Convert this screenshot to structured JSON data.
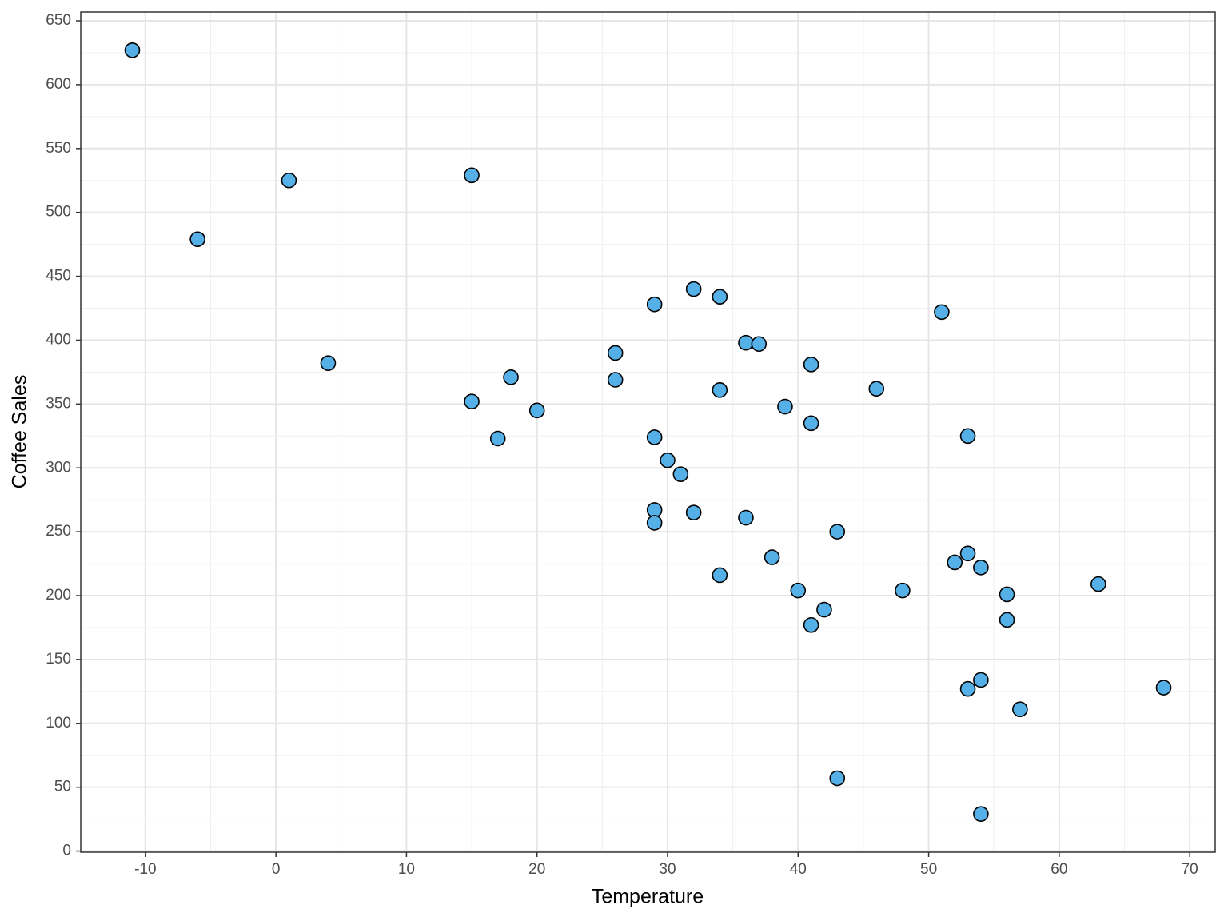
{
  "chart_data": {
    "type": "scatter",
    "x_label": "Temperature",
    "y_label": "Coffee Sales",
    "x": [
      -11,
      -6,
      1,
      15,
      4,
      15,
      18,
      17,
      20,
      26,
      26,
      29,
      32,
      34,
      36,
      37,
      41,
      51,
      34,
      46,
      39,
      41,
      53,
      29,
      30,
      31,
      29,
      29,
      32,
      36,
      43,
      38,
      53,
      52,
      54,
      34,
      40,
      48,
      42,
      41,
      56,
      56,
      63,
      54,
      53,
      68,
      57,
      43,
      54
    ],
    "y": [
      627,
      479,
      525,
      529,
      382,
      352,
      371,
      323,
      345,
      390,
      369,
      428,
      440,
      434,
      398,
      397,
      381,
      422,
      361,
      362,
      348,
      335,
      325,
      324,
      306,
      295,
      267,
      257,
      265,
      261,
      250,
      230,
      233,
      226,
      222,
      216,
      204,
      204,
      189,
      177,
      201,
      181,
      209,
      134,
      127,
      128,
      111,
      57,
      29
    ],
    "color": "#56b0e8",
    "xlim": [
      -14.95,
      71.95
    ],
    "xticks": [
      -10,
      0,
      10,
      20,
      30,
      40,
      50,
      60,
      70
    ],
    "ylim": [
      -0.9,
      656.9
    ],
    "yticks": [
      0,
      50,
      100,
      150,
      200,
      250,
      300,
      350,
      400,
      450,
      500,
      550,
      600,
      650
    ],
    "grid": true
  }
}
